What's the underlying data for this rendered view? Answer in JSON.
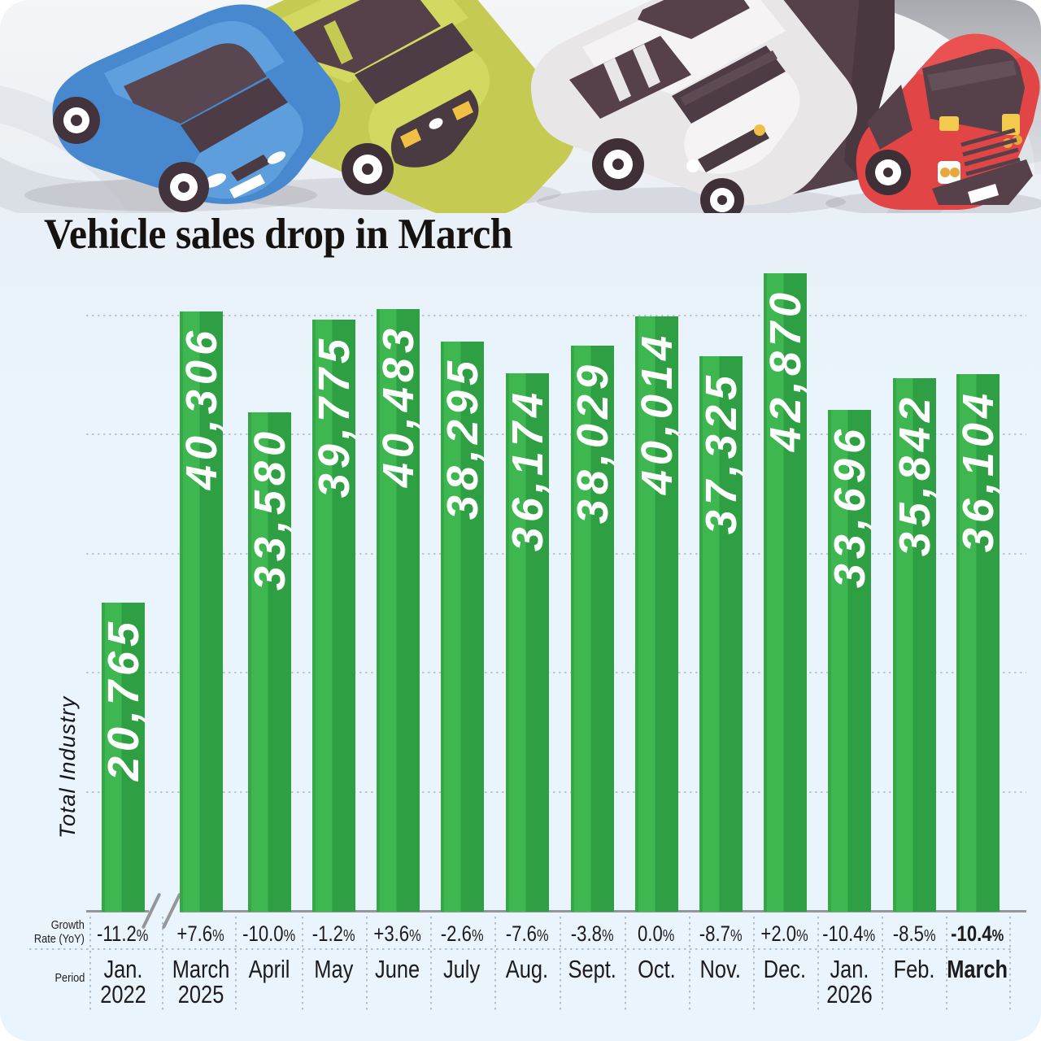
{
  "title": "Vehicle sales drop in March",
  "illustration": {
    "vehicles": [
      {
        "name": "blue-sedan",
        "color": "#4788ce"
      },
      {
        "name": "olive-wagon",
        "color": "#c5cb52"
      },
      {
        "name": "white-van",
        "color": "#eae7e8"
      },
      {
        "name": "red-box-truck",
        "color": "#e24545"
      }
    ]
  },
  "chart": {
    "ylabel": "Total Industry",
    "growth_label_line1": "Growth",
    "growth_label_line2": "Rate (YoY)",
    "period_label": "Period",
    "bars": [
      {
        "value": 20765,
        "label": "20,765",
        "growth": "-11.2%",
        "period": [
          "Jan.",
          "2022"
        ],
        "bold": false
      },
      {
        "value": 40306,
        "label": "40,306",
        "growth": "+7.6%",
        "period": [
          "March",
          "2025"
        ],
        "bold": false
      },
      {
        "value": 33580,
        "label": "33,580",
        "growth": "-10.0%",
        "period": [
          "April"
        ],
        "bold": false
      },
      {
        "value": 39775,
        "label": "39,775",
        "growth": "-1.2%",
        "period": [
          "May"
        ],
        "bold": false
      },
      {
        "value": 40483,
        "label": "40,483",
        "growth": "+3.6%",
        "period": [
          "June"
        ],
        "bold": false
      },
      {
        "value": 38295,
        "label": "38,295",
        "growth": "-2.6%",
        "period": [
          "July"
        ],
        "bold": false
      },
      {
        "value": 36174,
        "label": "36,174",
        "growth": "-7.6%",
        "period": [
          "Aug."
        ],
        "bold": false
      },
      {
        "value": 38029,
        "label": "38,029",
        "growth": "-3.8%",
        "period": [
          "Sept."
        ],
        "bold": false
      },
      {
        "value": 40014,
        "label": "40,014",
        "growth": "0.0%",
        "period": [
          "Oct."
        ],
        "bold": false
      },
      {
        "value": 37325,
        "label": "37,325",
        "growth": "-8.7%",
        "period": [
          "Nov."
        ],
        "bold": false
      },
      {
        "value": 42870,
        "label": "42,870",
        "growth": "+2.0%",
        "period": [
          "Dec."
        ],
        "bold": false
      },
      {
        "value": 33696,
        "label": "33,696",
        "growth": "-10.4%",
        "period": [
          "Jan.",
          "2026"
        ],
        "bold": false
      },
      {
        "value": 35842,
        "label": "35,842",
        "growth": "-8.5%",
        "period": [
          "Feb."
        ],
        "bold": false
      },
      {
        "value": 36104,
        "label": "36,104",
        "growth": "-10.4%",
        "period": [
          "March"
        ],
        "bold": true
      }
    ],
    "colors": {
      "bar_edge": "#35a747",
      "bar_light": "#3eb750",
      "bar_dark": "#2f9f43",
      "background": "#e9f4fc",
      "baseline": "#94969a",
      "grid_dots": "#b0bfc9",
      "value_text": "#ffffff",
      "label_text": "#1e1b1c"
    }
  },
  "chart_data": {
    "type": "bar",
    "title": "Vehicle sales drop in March",
    "ylabel": "Total Industry",
    "categories": [
      "Jan. 2022",
      "March 2025",
      "April",
      "May",
      "June",
      "July",
      "Aug.",
      "Sept.",
      "Oct.",
      "Nov.",
      "Dec.",
      "Jan. 2026",
      "Feb.",
      "March"
    ],
    "values": [
      20765,
      40306,
      33580,
      39775,
      40483,
      38295,
      36174,
      38029,
      40014,
      37325,
      42870,
      33696,
      35842,
      36104
    ],
    "growth_rate_yoy": [
      "-11.2%",
      "+7.6%",
      "-10.0%",
      "-1.2%",
      "+3.6%",
      "-2.6%",
      "-7.6%",
      "-3.8%",
      "0.0%",
      "-8.7%",
      "+2.0%",
      "-10.4%",
      "-8.5%",
      "-10.4%"
    ],
    "ylim": [
      0,
      43000
    ],
    "gridline_interval": 8000,
    "grid": true,
    "legend": false,
    "axis_break_after_index": 0,
    "bar_color": "#3eb750",
    "value_labels_inside_bars": true,
    "highlighted_category": "March"
  }
}
